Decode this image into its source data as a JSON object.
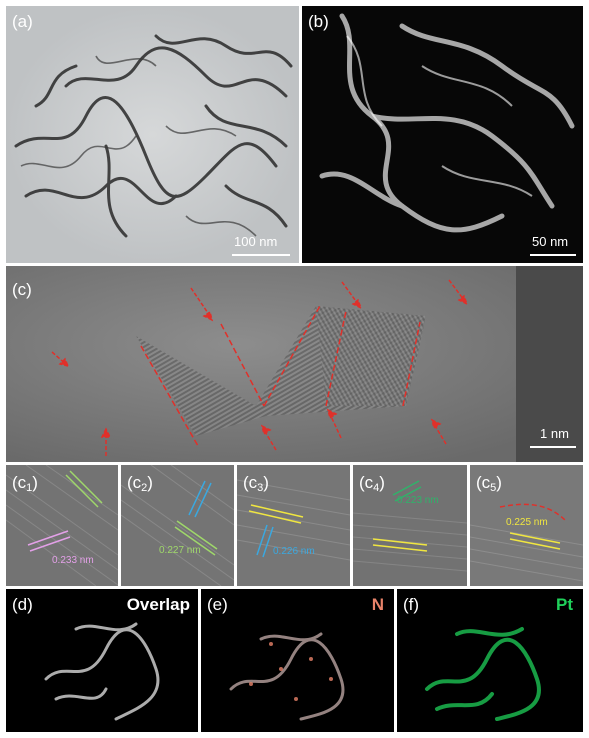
{
  "panels": {
    "a": {
      "label": "(a)",
      "scale_bar": "100 nm"
    },
    "b": {
      "label": "(b)",
      "scale_bar": "50 nm"
    },
    "c": {
      "label": "(c)",
      "scale_bar": "1 nm"
    },
    "c1": {
      "label": "(c",
      "sub": "1",
      "d_spacing": "0.233 nm",
      "d_color": "#e3a0e8"
    },
    "c2": {
      "label": "(c",
      "sub": "2",
      "d_spacing": "0.227 nm",
      "d_color": "#9fd86a"
    },
    "c3": {
      "label": "(c",
      "sub": "3",
      "d_spacing": "0.226 nm",
      "d_color": "#3aa8e0"
    },
    "c4": {
      "label": "(c",
      "sub": "4",
      "d_spacing": "0.223 nm",
      "d_color": "#2fb36a"
    },
    "c5": {
      "label": "(c",
      "sub": "5",
      "d_spacing": "0.225 nm",
      "d_color": "#f0e640"
    },
    "d": {
      "label": "(d)",
      "title": "Overlap",
      "title_color": "#ffffff"
    },
    "e": {
      "label": "(e)",
      "title": "N",
      "title_color": "#e8836a"
    },
    "f": {
      "label": "(f)",
      "title": "Pt",
      "title_color": "#1fd05a"
    }
  },
  "colors": {
    "arrow": "#e0302a",
    "lattice_line": "#e0302a"
  }
}
